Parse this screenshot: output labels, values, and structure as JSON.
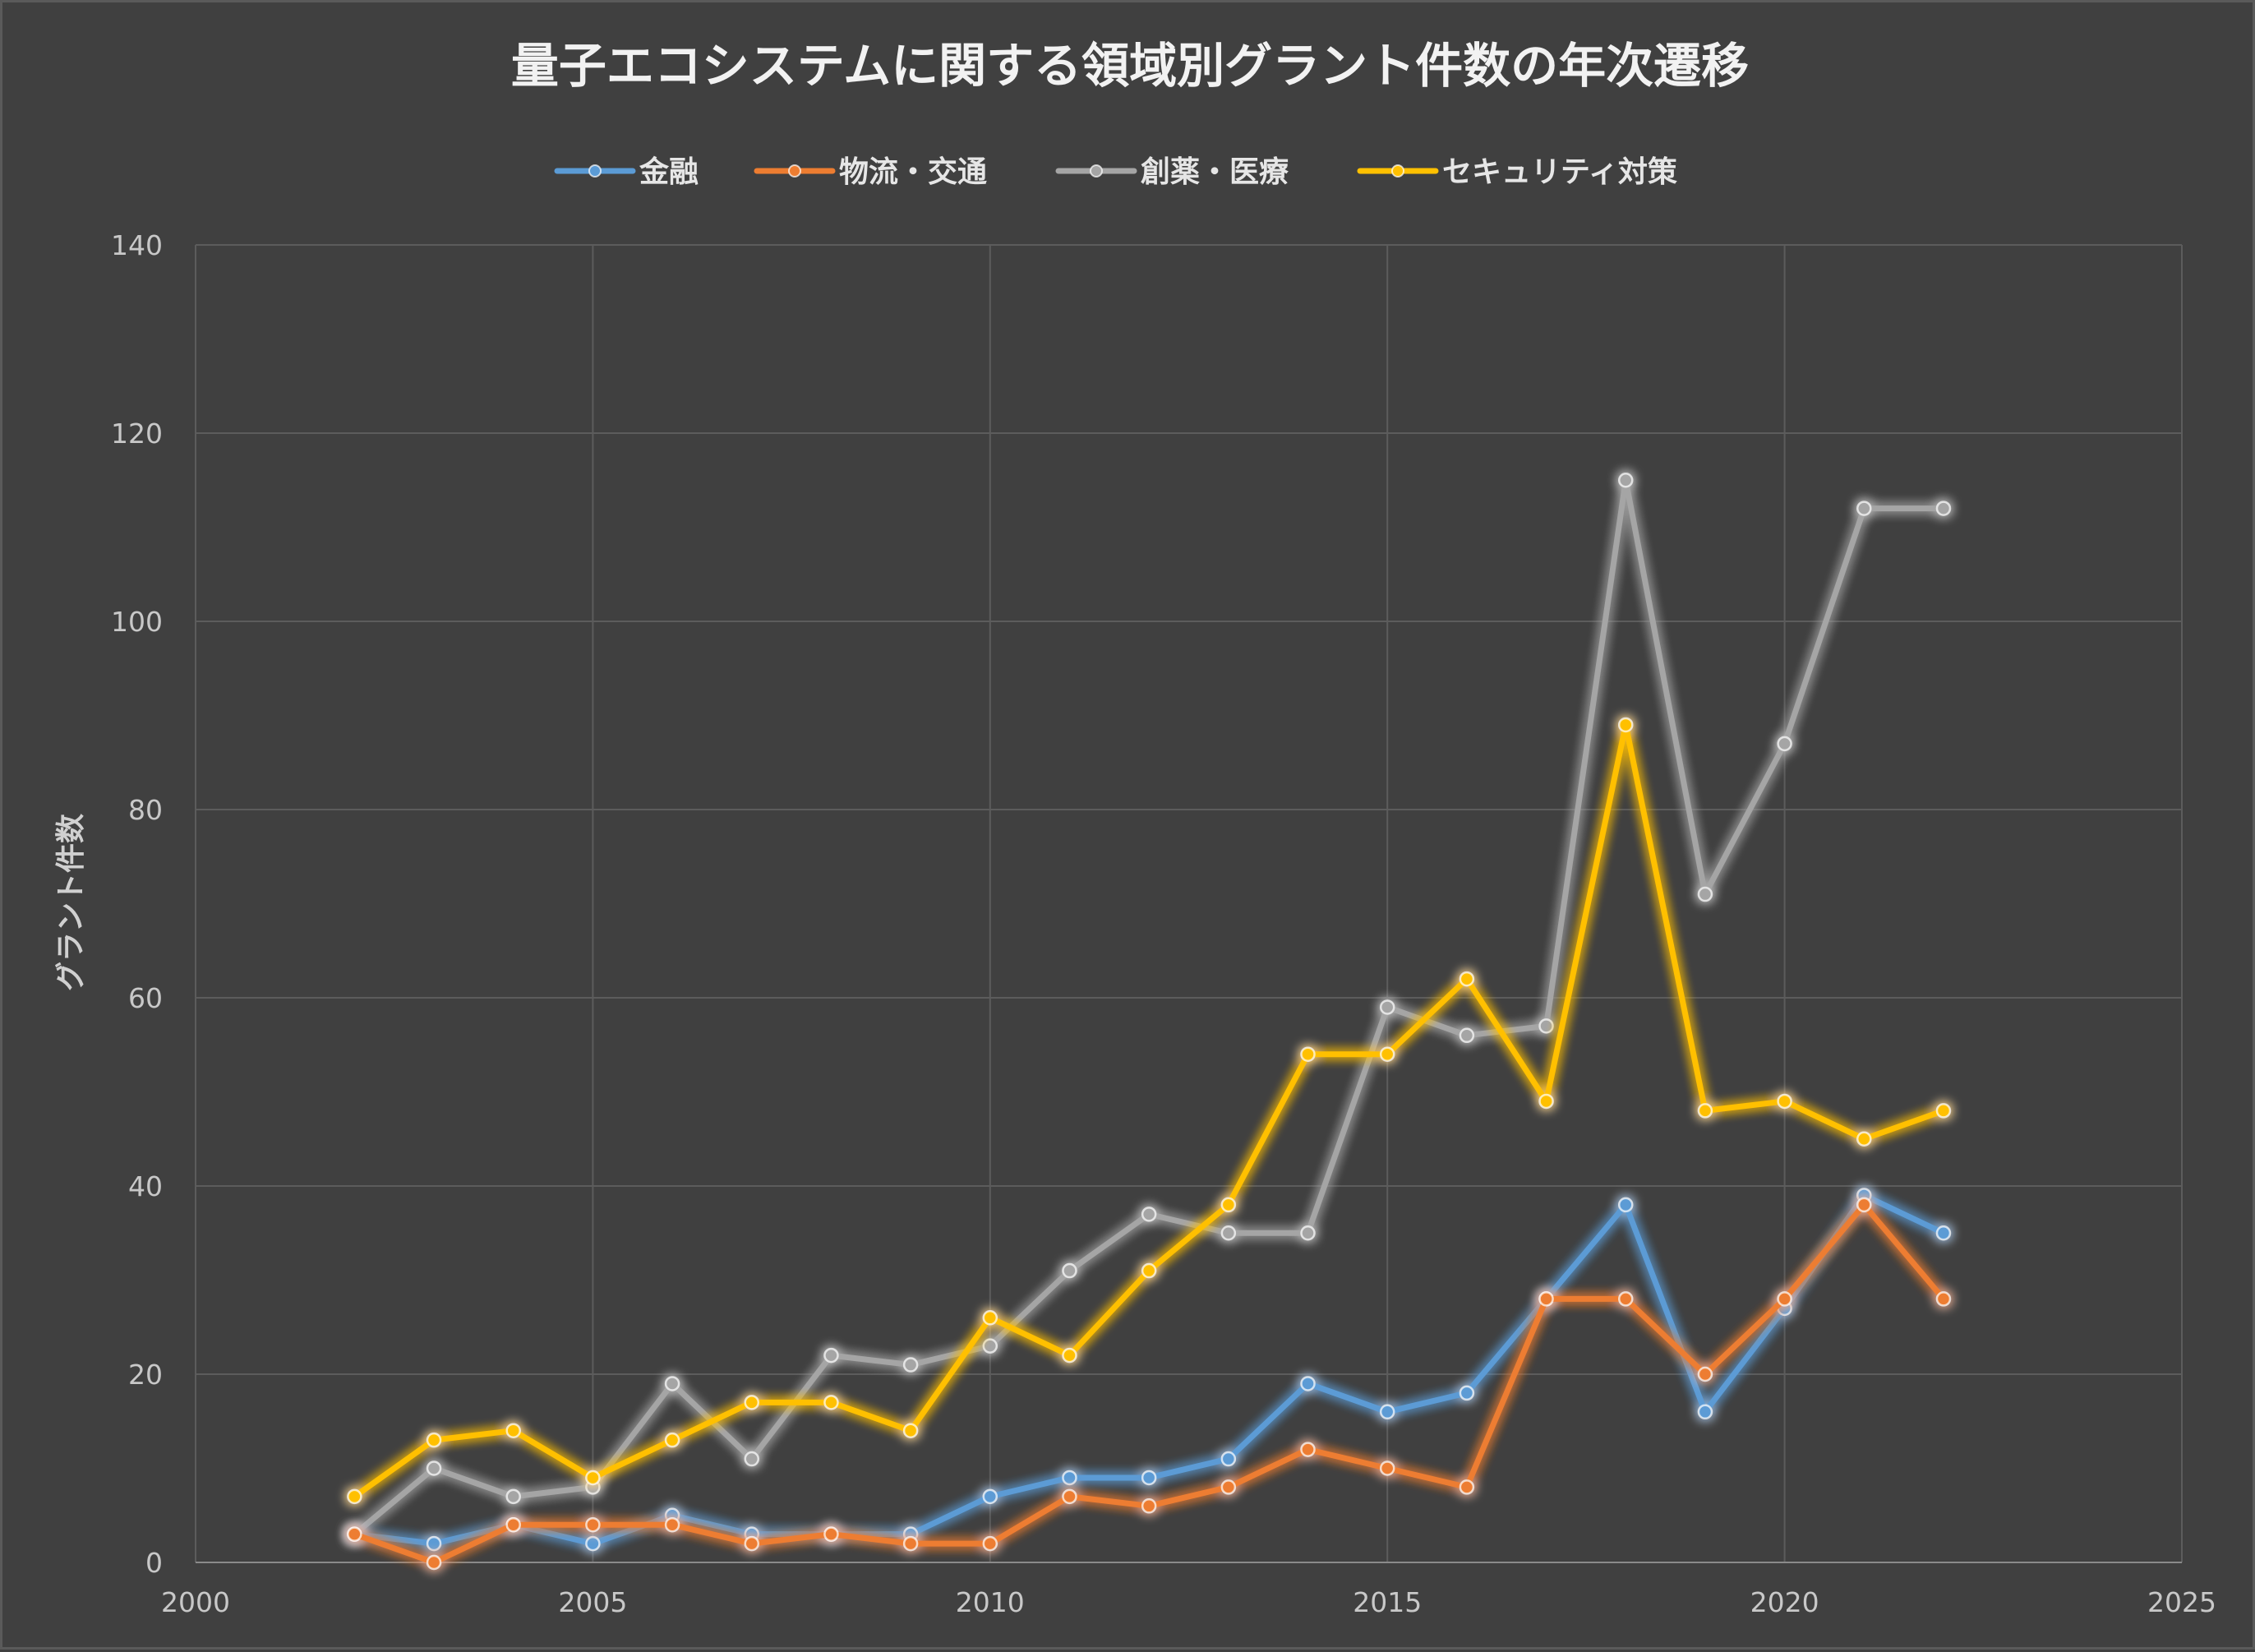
{
  "chart_data": {
    "type": "line",
    "title": "量子エコシステムに関する領域別グラント件数の年次遷移",
    "xlabel": "",
    "ylabel": "グラント件数",
    "xlim": [
      2000,
      2025
    ],
    "ylim": [
      0,
      140
    ],
    "x_ticks": [
      2000,
      2005,
      2010,
      2015,
      2020,
      2025
    ],
    "y_ticks": [
      0,
      20,
      40,
      60,
      80,
      100,
      120,
      140
    ],
    "grid": true,
    "legend_position": "top",
    "x": [
      2002,
      2003,
      2004,
      2005,
      2006,
      2007,
      2008,
      2009,
      2010,
      2011,
      2012,
      2013,
      2014,
      2015,
      2016,
      2017,
      2018,
      2019,
      2020,
      2021,
      2022
    ],
    "series": [
      {
        "name": "金融",
        "color": "#5b9bd5",
        "values": [
          3,
          2,
          4,
          2,
          5,
          3,
          3,
          3,
          7,
          9,
          9,
          11,
          19,
          16,
          18,
          28,
          38,
          16,
          27,
          39,
          35
        ]
      },
      {
        "name": "物流・交通",
        "color": "#ed7d31",
        "values": [
          3,
          0,
          4,
          4,
          4,
          2,
          3,
          2,
          2,
          7,
          6,
          8,
          12,
          10,
          8,
          28,
          28,
          20,
          28,
          38,
          28
        ]
      },
      {
        "name": "創薬・医療",
        "color": "#a5a5a5",
        "values": [
          3,
          10,
          7,
          8,
          19,
          11,
          22,
          21,
          23,
          31,
          37,
          35,
          35,
          59,
          56,
          57,
          115,
          71,
          87,
          112,
          112
        ]
      },
      {
        "name": "セキュリティ対策",
        "color": "#ffc000",
        "values": [
          7,
          13,
          14,
          9,
          13,
          17,
          17,
          14,
          26,
          22,
          31,
          38,
          54,
          54,
          62,
          49,
          89,
          48,
          49,
          45,
          48
        ]
      }
    ]
  }
}
